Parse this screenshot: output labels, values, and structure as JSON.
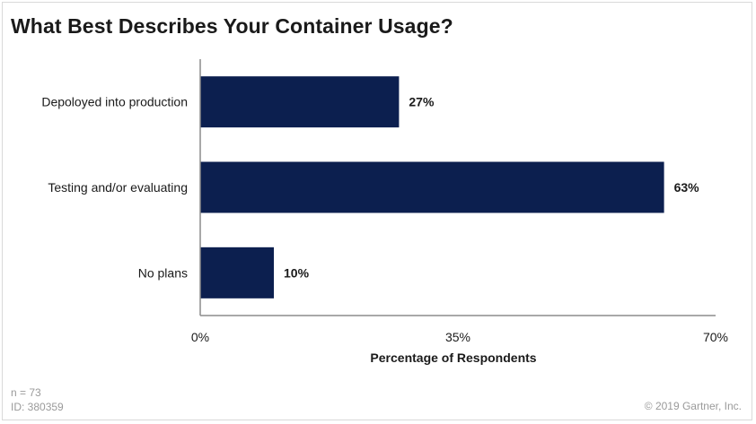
{
  "chart_data": {
    "type": "bar",
    "orientation": "horizontal",
    "title": "What Best Describes Your Container Usage?",
    "categories": [
      "Depoloyed into production",
      "Testing and/or evaluating",
      "No plans"
    ],
    "values": [
      27,
      63,
      10
    ],
    "value_labels": [
      "27%",
      "63%",
      "10%"
    ],
    "xlabel": "Percentage of Respondents",
    "xlim": [
      0,
      70
    ],
    "x_ticks": [
      0,
      35,
      70
    ],
    "x_tick_labels": [
      "0%",
      "35%",
      "70%"
    ],
    "bar_color": "#0c1f4f",
    "grid": false
  },
  "footer": {
    "n": "n = 73",
    "id": "ID: 380359",
    "copyright": "© 2019 Gartner, Inc."
  }
}
